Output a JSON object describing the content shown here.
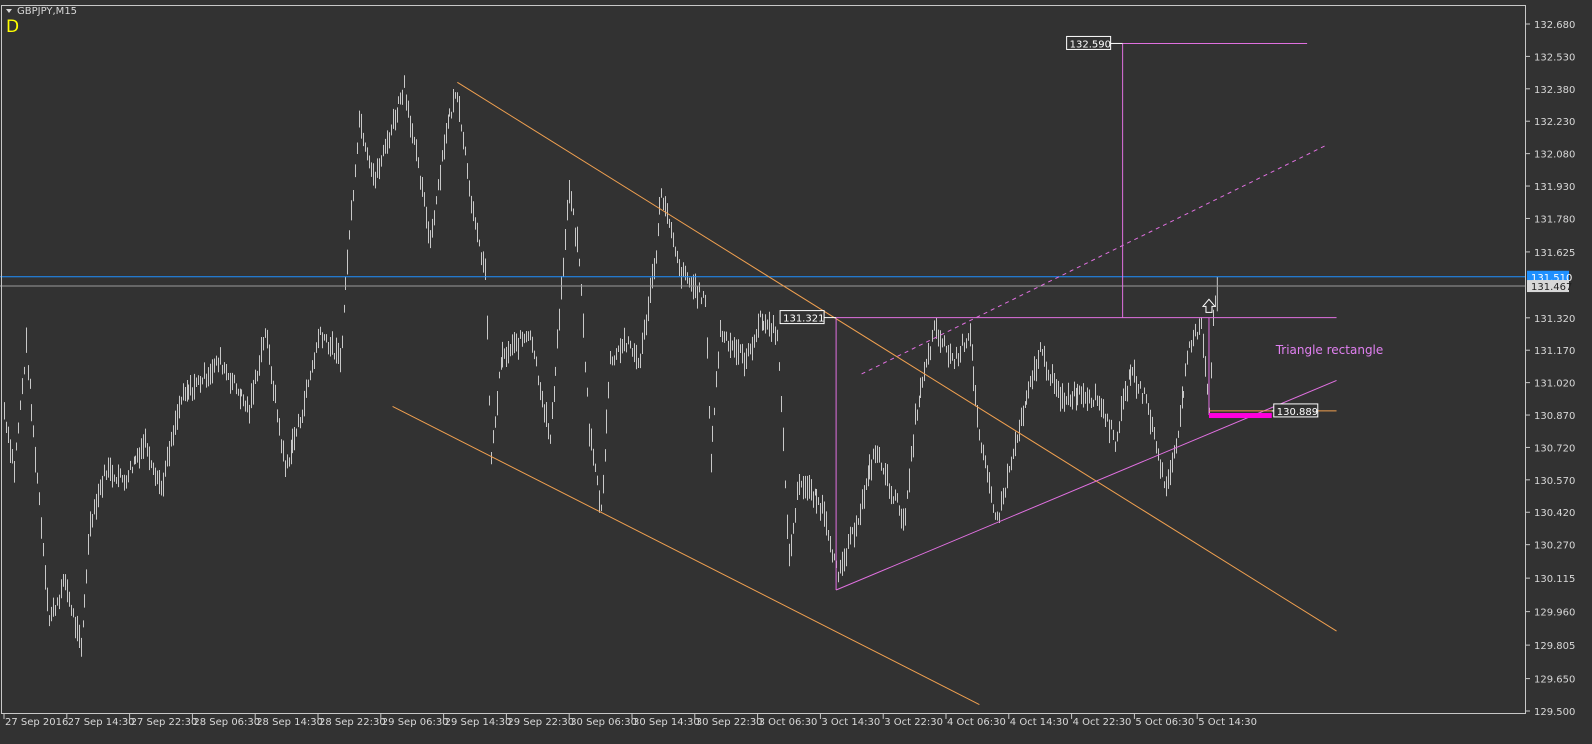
{
  "header": {
    "symbol_label": "GBPJPY,M15",
    "dropdown_icon": "triangle-down-icon",
    "indicator_letter": "D"
  },
  "colors": {
    "background": "#323232",
    "bars": "#c8c8c8",
    "frame": "#c8c8c8",
    "channel": "#f0a050",
    "triangle": "#e070e0",
    "stop_bar": "#ff00dd",
    "ask_line": "#1e90ff",
    "bid_line": "#9a9a9a",
    "indicator": "#ffff00",
    "annotation": "#e080f0"
  },
  "chart_data": {
    "type": "bar",
    "instrument": "GBPJPY",
    "timeframe": "M15",
    "ylim": [
      129.5,
      132.68
    ],
    "grid": false,
    "y_ticks": [
      "132.680",
      "132.530",
      "132.380",
      "132.230",
      "132.080",
      "131.930",
      "131.780",
      "131.625",
      "131.320",
      "131.170",
      "131.020",
      "130.870",
      "130.720",
      "130.570",
      "130.420",
      "130.270",
      "130.115",
      "129.960",
      "129.805",
      "129.650",
      "129.500"
    ],
    "x_ticks": [
      {
        "t": "2016-09-27 06:30",
        "label": "27 Sep 2016"
      },
      {
        "t": "2016-09-27 14:30",
        "label": "27 Sep 14:30"
      },
      {
        "t": "2016-09-27 22:30",
        "label": "27 Sep 22:30"
      },
      {
        "t": "2016-09-28 06:30",
        "label": "28 Sep 06:30"
      },
      {
        "t": "2016-09-28 14:30",
        "label": "28 Sep 14:30"
      },
      {
        "t": "2016-09-28 22:30",
        "label": "28 Sep 22:30"
      },
      {
        "t": "2016-09-29 06:30",
        "label": "29 Sep 06:30"
      },
      {
        "t": "2016-09-29 14:30",
        "label": "29 Sep 14:30"
      },
      {
        "t": "2016-09-29 22:30",
        "label": "29 Sep 22:30"
      },
      {
        "t": "2016-09-30 06:30",
        "label": "30 Sep 06:30"
      },
      {
        "t": "2016-09-30 14:30",
        "label": "30 Sep 14:30"
      },
      {
        "t": "2016-09-30 22:30",
        "label": "30 Sep 22:30"
      },
      {
        "t": "2016-10-03 06:30",
        "label": "3 Oct 06:30"
      },
      {
        "t": "2016-10-03 14:30",
        "label": "3 Oct 14:30"
      },
      {
        "t": "2016-10-03 22:30",
        "label": "3 Oct 22:30"
      },
      {
        "t": "2016-10-04 06:30",
        "label": "4 Oct 06:30"
      },
      {
        "t": "2016-10-04 14:30",
        "label": "4 Oct 14:30"
      },
      {
        "t": "2016-10-04 22:30",
        "label": "4 Oct 22:30"
      },
      {
        "t": "2016-10-05 06:30",
        "label": "5 Oct 06:30"
      },
      {
        "t": "2016-10-05 14:30",
        "label": "5 Oct 14:30"
      }
    ],
    "price_path": [
      [
        "2016-09-27 06:30",
        130.89
      ],
      [
        "2016-09-27 07:45",
        130.62
      ],
      [
        "2016-09-27 09:15",
        131.19
      ],
      [
        "2016-09-27 11:00",
        130.48
      ],
      [
        "2016-09-27 12:15",
        129.92
      ],
      [
        "2016-09-27 14:15",
        130.1
      ],
      [
        "2016-09-27 16:15",
        129.78
      ],
      [
        "2016-09-27 17:30",
        130.38
      ],
      [
        "2016-09-27 19:30",
        130.62
      ],
      [
        "2016-09-27 21:45",
        130.57
      ],
      [
        "2016-09-28 00:30",
        130.75
      ],
      [
        "2016-09-28 02:30",
        130.53
      ],
      [
        "2016-09-28 05:00",
        130.94
      ],
      [
        "2016-09-28 10:00",
        131.12
      ],
      [
        "2016-09-28 13:45",
        130.89
      ],
      [
        "2016-09-28 15:45",
        131.26
      ],
      [
        "2016-09-28 18:15",
        130.62
      ],
      [
        "2016-09-28 20:15",
        130.85
      ],
      [
        "2016-09-28 22:45",
        131.26
      ],
      [
        "2016-09-29 01:15",
        131.12
      ],
      [
        "2016-09-29 02:15",
        131.59
      ],
      [
        "2016-09-29 03:45",
        132.24
      ],
      [
        "2016-09-29 05:45",
        131.96
      ],
      [
        "2016-09-29 09:30",
        132.4
      ],
      [
        "2016-09-29 12:45",
        131.68
      ],
      [
        "2016-09-29 14:45",
        132.19
      ],
      [
        "2016-09-29 16:15",
        132.37
      ],
      [
        "2016-09-29 18:30",
        131.73
      ],
      [
        "2016-09-29 19:45",
        131.54
      ],
      [
        "2016-09-29 20:30",
        130.66
      ],
      [
        "2016-09-29 21:45",
        131.12
      ],
      [
        "2016-09-30 01:30",
        131.26
      ],
      [
        "2016-09-30 04:00",
        130.75
      ],
      [
        "2016-09-30 06:30",
        131.91
      ],
      [
        "2016-09-30 07:45",
        131.59
      ],
      [
        "2016-09-30 09:00",
        130.8
      ],
      [
        "2016-09-30 10:30",
        130.43
      ],
      [
        "2016-09-30 11:45",
        131.12
      ],
      [
        "2016-09-30 13:30",
        131.21
      ],
      [
        "2016-09-30 15:30",
        131.12
      ],
      [
        "2016-09-30 17:30",
        131.63
      ],
      [
        "2016-09-30 18:15",
        131.91
      ],
      [
        "2016-09-30 20:30",
        131.54
      ],
      [
        "2016-09-30 23:45",
        131.4
      ],
      [
        "2016-10-03 00:30",
        130.66
      ],
      [
        "2016-10-03 01:45",
        131.26
      ],
      [
        "2016-10-03 05:00",
        131.12
      ],
      [
        "2016-10-03 06:45",
        131.31
      ],
      [
        "2016-10-03 09:00",
        131.26
      ],
      [
        "2016-10-03 10:30",
        130.2
      ],
      [
        "2016-10-03 11:45",
        130.57
      ],
      [
        "2016-10-03 15:00",
        130.43
      ],
      [
        "2016-10-03 16:45",
        130.11
      ],
      [
        "2016-10-03 19:30",
        130.43
      ],
      [
        "2016-10-03 21:30",
        130.71
      ],
      [
        "2016-10-03 23:30",
        130.52
      ],
      [
        "2016-10-04 01:15",
        130.38
      ],
      [
        "2016-10-04 02:30",
        130.85
      ],
      [
        "2016-10-04 05:00",
        131.26
      ],
      [
        "2016-10-04 07:30",
        131.12
      ],
      [
        "2016-10-04 09:30",
        131.26
      ],
      [
        "2016-10-04 10:45",
        130.75
      ],
      [
        "2016-10-04 13:00",
        130.38
      ],
      [
        "2016-10-04 15:45",
        130.8
      ],
      [
        "2016-10-04 18:30",
        131.17
      ],
      [
        "2016-10-04 21:00",
        130.94
      ],
      [
        "2016-10-04 23:30",
        130.98
      ],
      [
        "2016-10-05 02:00",
        130.94
      ],
      [
        "2016-10-05 04:00",
        130.75
      ],
      [
        "2016-10-05 06:00",
        131.08
      ],
      [
        "2016-10-05 08:00",
        130.94
      ],
      [
        "2016-10-05 10:30",
        130.52
      ],
      [
        "2016-10-05 11:45",
        130.75
      ],
      [
        "2016-10-05 13:30",
        131.17
      ],
      [
        "2016-10-05 15:00",
        131.31
      ],
      [
        "2016-10-05 16:00",
        130.89
      ],
      [
        "2016-10-05 16:30",
        131.31
      ],
      [
        "2016-10-05 17:00",
        131.47
      ]
    ],
    "ask_line": {
      "price": 131.51,
      "label": "131.510"
    },
    "bid_line": {
      "price": 131.467,
      "label": "131.467"
    },
    "objects": [
      {
        "name": "channel-upper-line",
        "kind": "trend",
        "color": "channel",
        "from": [
          "2016-09-29 16:15",
          132.41
        ],
        "to": [
          "2016-10-06 08:15",
          129.87
        ]
      },
      {
        "name": "channel-lower-line",
        "kind": "trend",
        "color": "channel",
        "from": [
          "2016-09-29 08:00",
          130.91
        ],
        "to": [
          "2016-10-04 10:45",
          129.53
        ]
      },
      {
        "name": "triangle-left-side",
        "kind": "trend",
        "color": "triangle",
        "from": [
          "2016-10-03 16:30",
          131.321
        ],
        "to": [
          "2016-10-03 16:30",
          130.06
        ]
      },
      {
        "name": "triangle-top-side",
        "kind": "trend",
        "color": "triangle",
        "from": [
          "2016-10-03 16:30",
          131.321
        ],
        "to": [
          "2016-10-06 08:15",
          131.321
        ]
      },
      {
        "name": "triangle-bottom-side",
        "kind": "trend",
        "color": "triangle",
        "from": [
          "2016-10-03 16:30",
          130.06
        ],
        "to": [
          "2016-10-06 08:15",
          131.03
        ]
      },
      {
        "name": "dashed-projection-line",
        "kind": "dashed",
        "color": "triangle",
        "from": [
          "2016-10-03 19:45",
          131.06
        ],
        "to": [
          "2016-10-06 07:00",
          132.12
        ]
      },
      {
        "name": "target-vertical",
        "kind": "trend",
        "color": "triangle",
        "from": [
          "2016-10-05 05:00",
          131.321
        ],
        "to": [
          "2016-10-05 05:00",
          132.59
        ]
      },
      {
        "name": "target-horizontal",
        "kind": "trend",
        "color": "triangle",
        "from": [
          "2016-10-05 05:00",
          132.59
        ],
        "to": [
          "2016-10-06 04:30",
          132.59
        ]
      },
      {
        "name": "stop-vertical",
        "kind": "trend",
        "color": "triangle",
        "from": [
          "2016-10-05 16:00",
          131.321
        ],
        "to": [
          "2016-10-05 16:00",
          130.87
        ]
      },
      {
        "name": "stop-level-line",
        "kind": "trend",
        "color": "channel",
        "from": [
          "2016-10-05 16:00",
          130.889
        ],
        "to": [
          "2016-10-06 08:15",
          130.889
        ]
      }
    ],
    "stop_bar": {
      "from": [
        "2016-10-05 16:00",
        130.87
      ],
      "to": [
        "2016-10-06 00:00",
        130.87
      ]
    },
    "price_labels": [
      {
        "label": "132.590",
        "t": "2016-10-05 05:00",
        "price": 132.59,
        "side": "left"
      },
      {
        "label": "131.321",
        "t": "2016-10-03 16:30",
        "price": 131.321,
        "side": "left"
      },
      {
        "label": "130.889",
        "t": "2016-10-06 00:00",
        "price": 130.889,
        "side": "right"
      }
    ],
    "arrow": {
      "t": "2016-10-05 16:00",
      "price": 131.35,
      "icon": "arrow-up-icon"
    },
    "annotation": {
      "text": "Triangle rectangle",
      "t": "2016-10-06 00:30",
      "price": 131.17
    }
  }
}
